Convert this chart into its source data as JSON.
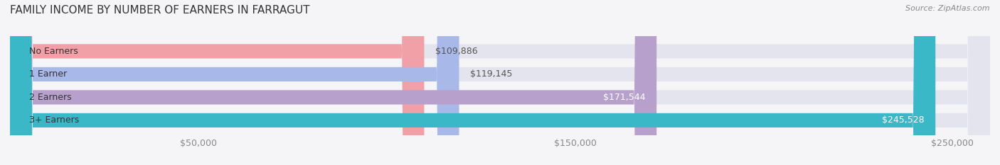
{
  "title": "FAMILY INCOME BY NUMBER OF EARNERS IN FARRAGUT",
  "source": "Source: ZipAtlas.com",
  "categories": [
    "No Earners",
    "1 Earner",
    "2 Earners",
    "3+ Earners"
  ],
  "values": [
    109886,
    119145,
    171544,
    245528
  ],
  "bar_colors": [
    "#f2a0a8",
    "#a8b8e8",
    "#b8a0cc",
    "#3ab8c8"
  ],
  "label_colors": [
    "#555555",
    "#555555",
    "#ffffff",
    "#ffffff"
  ],
  "bar_bg_color": "#e4e4ee",
  "background_color": "#f5f5f8",
  "xlim": [
    0,
    260000
  ],
  "xticks": [
    50000,
    150000,
    250000
  ],
  "xtick_labels": [
    "$50,000",
    "$150,000",
    "$250,000"
  ],
  "title_fontsize": 11,
  "bar_label_fontsize": 9,
  "tick_fontsize": 9,
  "category_fontsize": 9
}
